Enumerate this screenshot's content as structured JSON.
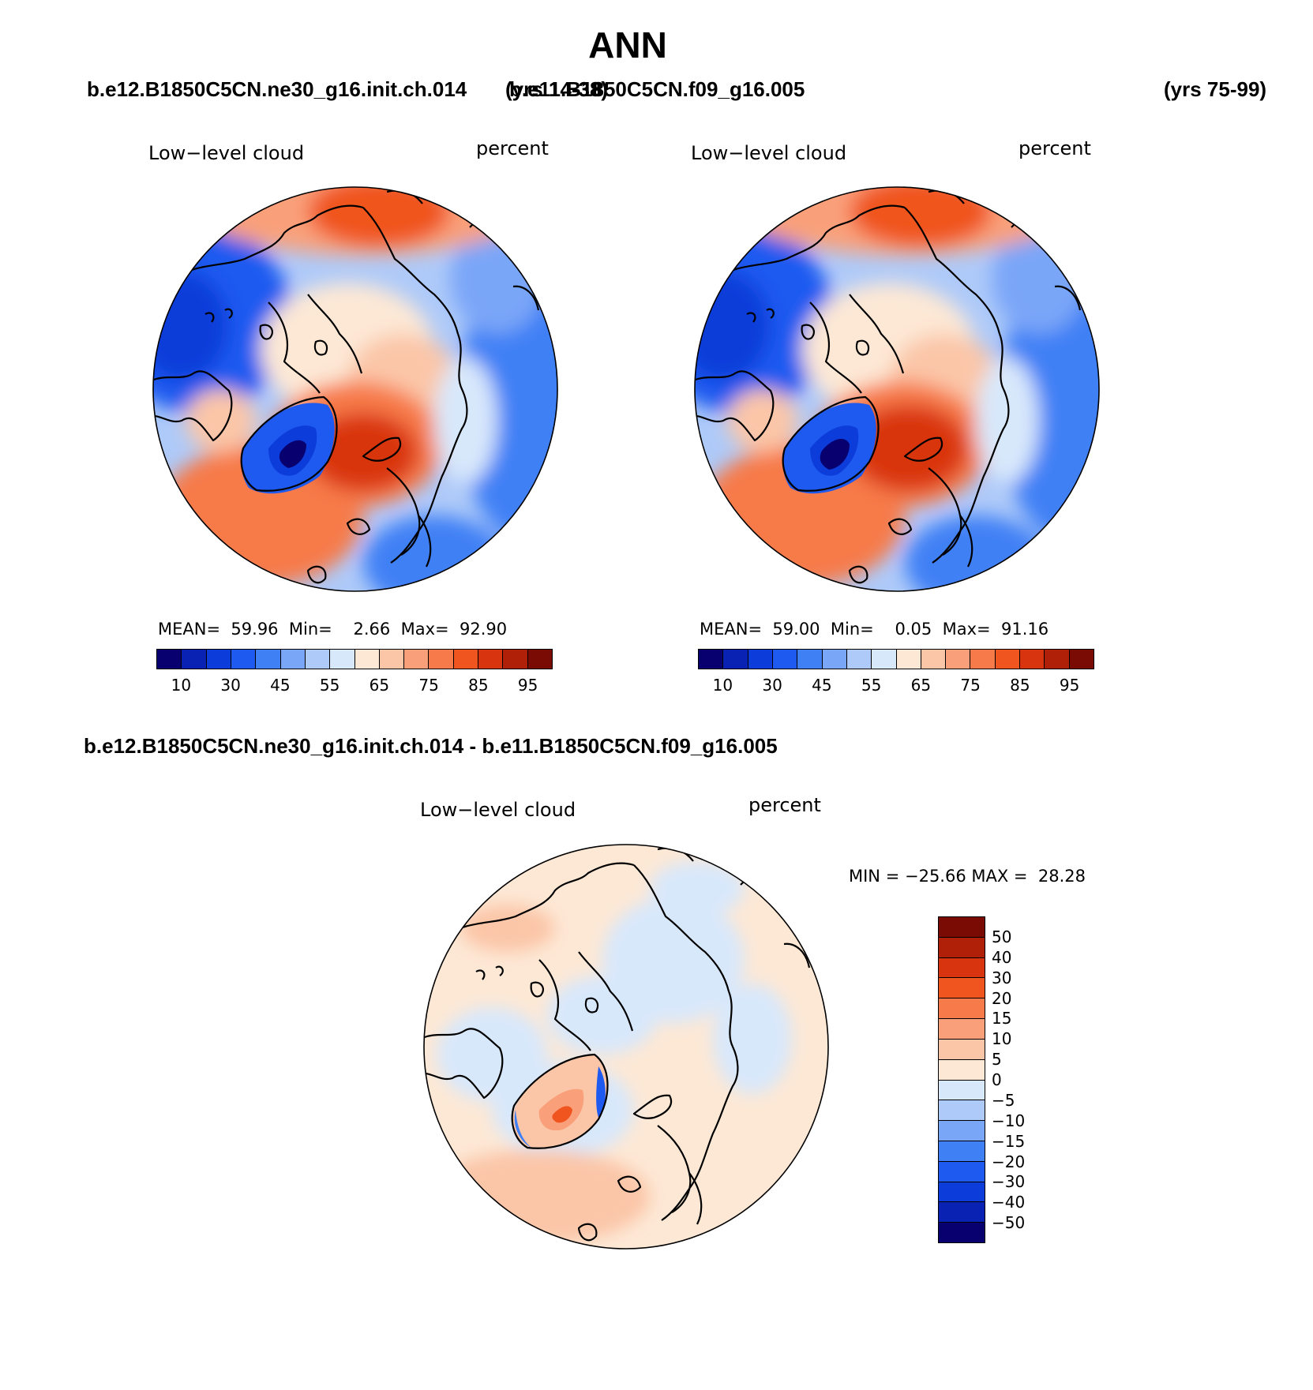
{
  "title": "ANN",
  "header": {
    "left_case": "b.e12.B1850C5CN.ne30_g16.init.ch.014",
    "left_years": "(yrs 14-38)",
    "right_case": "b.e11.B1850C5CN.f09_g16.005",
    "right_years": "(yrs 75-99)"
  },
  "panels": [
    {
      "variable": "Low−level cloud",
      "units": "percent",
      "stats": {
        "mean_label": "MEAN=",
        "mean": "59.96",
        "min_label": "Min=",
        "min": "2.66",
        "max_label": "Max=",
        "max": "92.90"
      }
    },
    {
      "variable": "Low−level cloud",
      "units": "percent",
      "stats": {
        "mean_label": "MEAN=",
        "mean": "59.00",
        "min_label": "Min=",
        "min": "0.05",
        "max_label": "Max=",
        "max": "91.16"
      }
    }
  ],
  "colorbar": {
    "ticks": [
      "10",
      "30",
      "45",
      "55",
      "65",
      "75",
      "85",
      "95"
    ],
    "colors": [
      "#08006e",
      "#0a22b4",
      "#0c3cd9",
      "#1e5af0",
      "#4080f5",
      "#7aa6f8",
      "#aecaf9",
      "#d8e8fb",
      "#fde8d5",
      "#fbc6a8",
      "#f9a07a",
      "#f77a4a",
      "#f0541f",
      "#d93410",
      "#b02008",
      "#7a0b04"
    ]
  },
  "difference": {
    "header": "b.e12.B1850C5CN.ne30_g16.init.ch.014 - b.e11.B1850C5CN.f09_g16.005",
    "variable": "Low−level cloud",
    "units": "percent",
    "stats": {
      "min_label": "MIN =",
      "min": "−25.66",
      "max_label": "MAX =",
      "max": "28.28"
    },
    "colorbar": {
      "ticks": [
        "50",
        "40",
        "30",
        "20",
        "15",
        "10",
        "5",
        "0",
        "−5",
        "−10",
        "−15",
        "−20",
        "−30",
        "−40",
        "−50"
      ],
      "colors": [
        "#7a0b04",
        "#b02008",
        "#d93410",
        "#f0541f",
        "#f77a4a",
        "#f9a07a",
        "#fbc6a8",
        "#fde8d5",
        "#d8e8fb",
        "#aecaf9",
        "#7aa6f8",
        "#4080f5",
        "#1e5af0",
        "#0c3cd9",
        "#0a22b4",
        "#08006e"
      ]
    }
  }
}
